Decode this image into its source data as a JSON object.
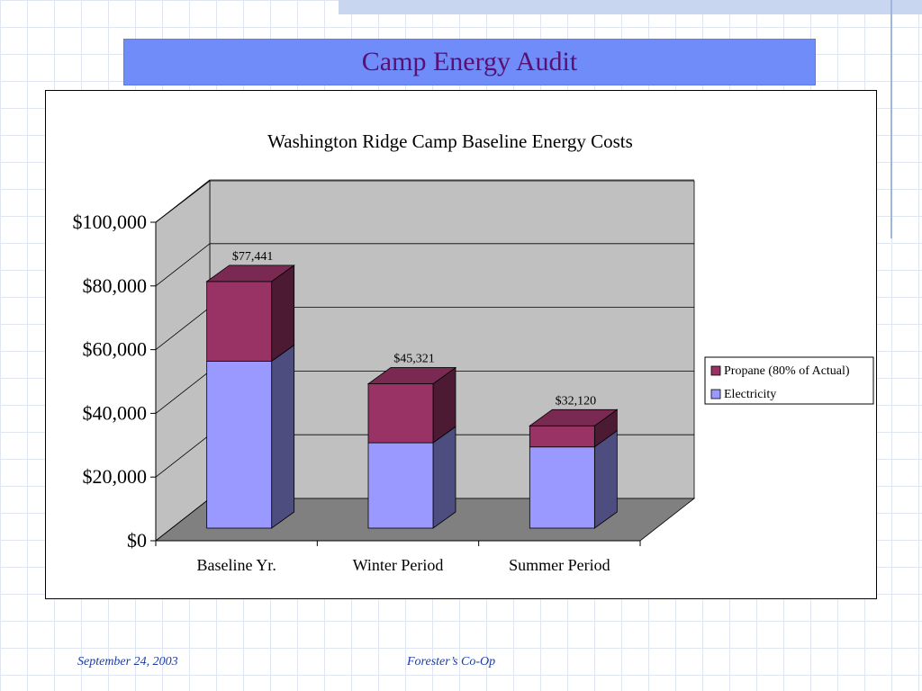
{
  "slide": {
    "title": "Camp Energy Audit",
    "footer_date": "September 24, 2003",
    "footer_org": "Forester’s Co-Op"
  },
  "colors": {
    "banner": "#6f8cf8",
    "title_text": "#5b0f73",
    "propane_front": "#993366",
    "electricity_front": "#9999ff",
    "plot_wall": "#c0c0c0",
    "plot_floor": "#808080"
  },
  "chart_data": {
    "type": "bar",
    "stacked": true,
    "three_d": true,
    "title": "Washington Ridge Camp Baseline Energy Costs",
    "categories": [
      "Baseline Yr.",
      "Winter Period",
      "Summer Period"
    ],
    "series": [
      {
        "name": "Electricity",
        "values": [
          52400,
          26800,
          25500
        ]
      },
      {
        "name": "Propane (80% of Actual)",
        "values": [
          25041,
          18521,
          6620
        ]
      }
    ],
    "totals": [
      77441,
      45321,
      32120
    ],
    "total_labels": [
      "$77,441",
      "$45,321",
      "$32,120"
    ],
    "ylim": [
      0,
      100000
    ],
    "y_ticks": [
      0,
      20000,
      40000,
      60000,
      80000,
      100000
    ],
    "y_tick_labels": [
      "$0",
      "$20,000",
      "$40,000",
      "$60,000",
      "$80,000",
      "$100,000"
    ],
    "grid": true,
    "legend": "right",
    "legend_entries": [
      "Propane (80% of Actual)",
      "Electricity"
    ]
  }
}
